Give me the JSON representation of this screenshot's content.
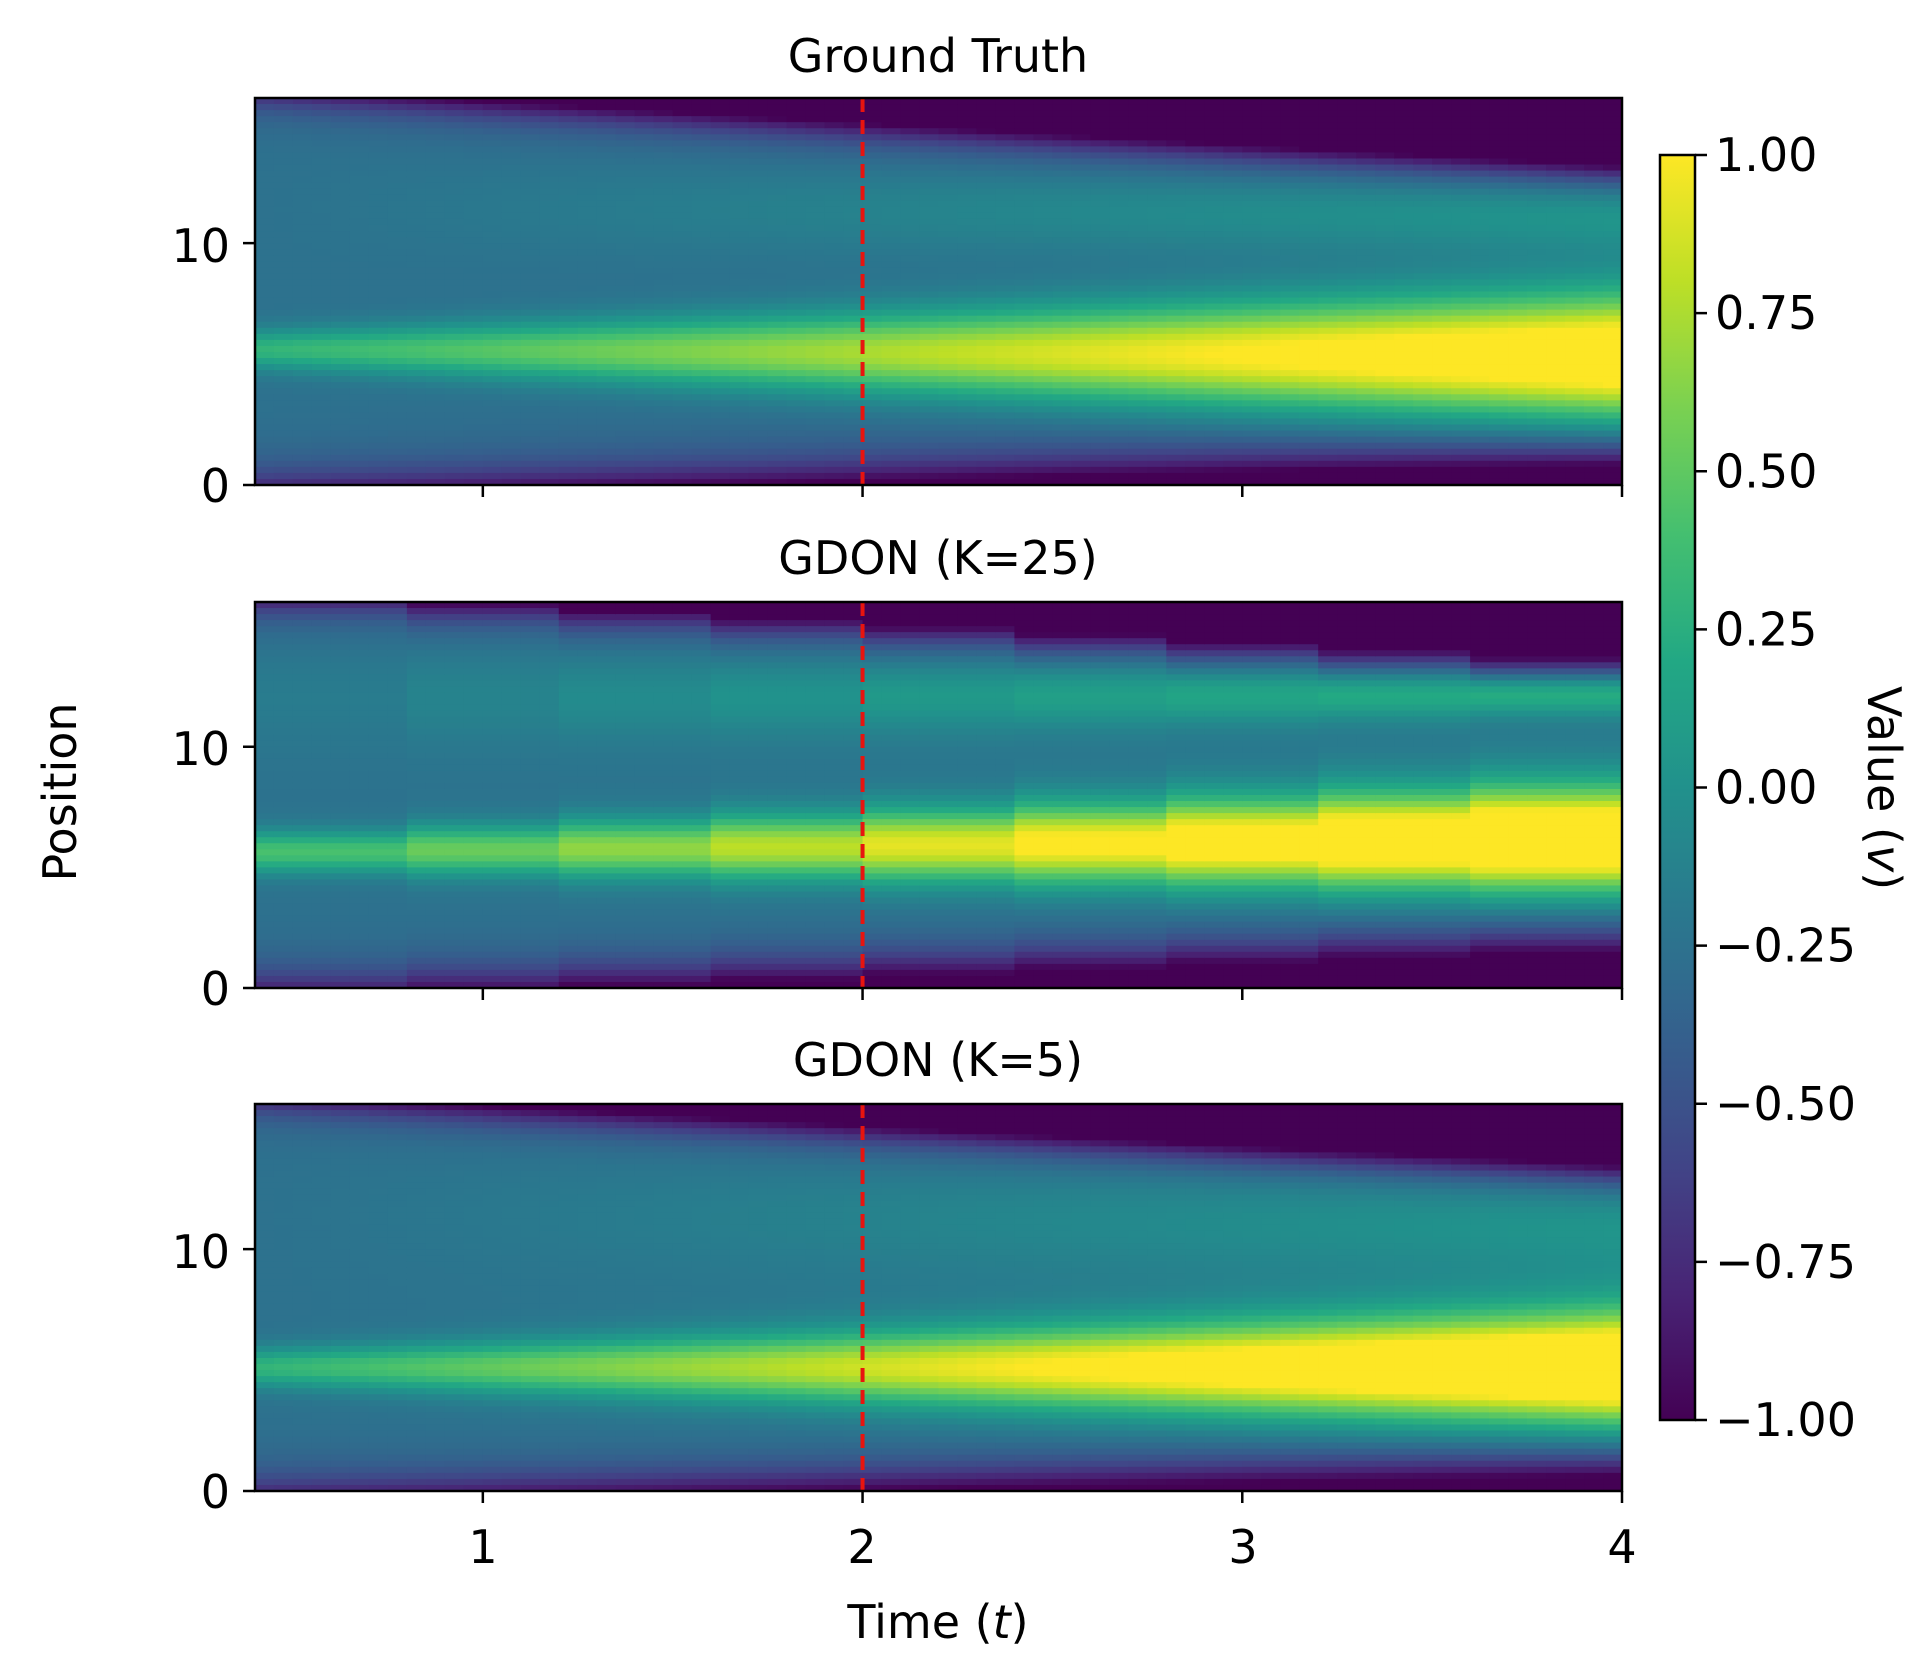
{
  "chart_data": [
    {
      "type": "heatmap",
      "title": "Ground Truth",
      "xlim": [
        0.4,
        4.0
      ],
      "ylim": [
        0,
        16
      ],
      "xticks": [
        1,
        2,
        3,
        4
      ],
      "yticks": [
        0,
        10
      ],
      "xlabel": "",
      "ylabel": "",
      "vline_x": 2,
      "time_blocks": 0,
      "bands": {
        "core": [
          [
            5.6,
            0.8
          ],
          [
            5.3,
            2.7
          ]
        ],
        "core_amp": [
          0.55,
          1.6
        ],
        "mid_level": [
          -0.25,
          -0.3
        ],
        "upper": [
          [
            11.5,
            2.2
          ],
          [
            11.2,
            1.6
          ]
        ],
        "upper_amp": [
          0.0,
          0.35
        ],
        "top_edge": [
          16.5,
          13.2
        ],
        "bottom_edge": [
          -0.4,
          1.0
        ]
      }
    },
    {
      "type": "heatmap",
      "title": "GDON (K=25)",
      "xlim": [
        0.4,
        4.0
      ],
      "ylim": [
        0,
        16
      ],
      "xticks": [
        1,
        2,
        3,
        4
      ],
      "yticks": [
        0,
        10
      ],
      "xlabel": "",
      "ylabel": "Position",
      "vline_x": 2,
      "time_blocks": 9,
      "bands": {
        "core": [
          [
            5.6,
            0.8
          ],
          [
            6.2,
            2.2
          ]
        ],
        "core_amp": [
          0.6,
          1.7
        ],
        "mid_level": [
          -0.25,
          -0.2
        ],
        "upper": [
          [
            12.0,
            2.2
          ],
          [
            12.2,
            0.8
          ]
        ],
        "upper_amp": [
          0.05,
          0.55
        ],
        "top_edge": [
          16.5,
          13.5
        ],
        "bottom_edge": [
          -0.4,
          1.8
        ]
      }
    },
    {
      "type": "heatmap",
      "title": "GDON (K=5)",
      "xlim": [
        0.4,
        4.0
      ],
      "ylim": [
        0,
        16
      ],
      "xticks": [
        1,
        2,
        3,
        4
      ],
      "yticks": [
        0,
        10
      ],
      "xlabel": "Time (t)",
      "ylabel": "",
      "vline_x": 2,
      "time_blocks": 0,
      "bands": {
        "core": [
          [
            5.1,
            0.8
          ],
          [
            5.1,
            2.3
          ]
        ],
        "core_amp": [
          0.55,
          1.7
        ],
        "mid_level": [
          -0.25,
          -0.15
        ],
        "upper": [
          [
            11.5,
            2.2
          ],
          [
            11.0,
            2.0
          ]
        ],
        "upper_amp": [
          0.0,
          0.2
        ],
        "top_edge": [
          16.5,
          13.3
        ],
        "bottom_edge": [
          -0.4,
          1.0
        ]
      }
    }
  ],
  "colorbar": {
    "label_text": "Value (",
    "label_var": "v",
    "label_close": ")",
    "vmin": -1.0,
    "vmax": 1.0,
    "ticks": [
      "−1.00",
      "−0.75",
      "−0.50",
      "−0.25",
      "0.00",
      "0.25",
      "0.50",
      "0.75",
      "1.00"
    ],
    "tick_values": [
      -1.0,
      -0.75,
      -0.5,
      -0.25,
      0.0,
      0.25,
      0.5,
      0.75,
      1.0
    ],
    "colormap": "viridis"
  },
  "xaxis_label": {
    "prefix": "Time (",
    "var": "t",
    "suffix": ")"
  },
  "yaxis_label": "Position",
  "colors": {
    "marker": "#e8140f"
  }
}
